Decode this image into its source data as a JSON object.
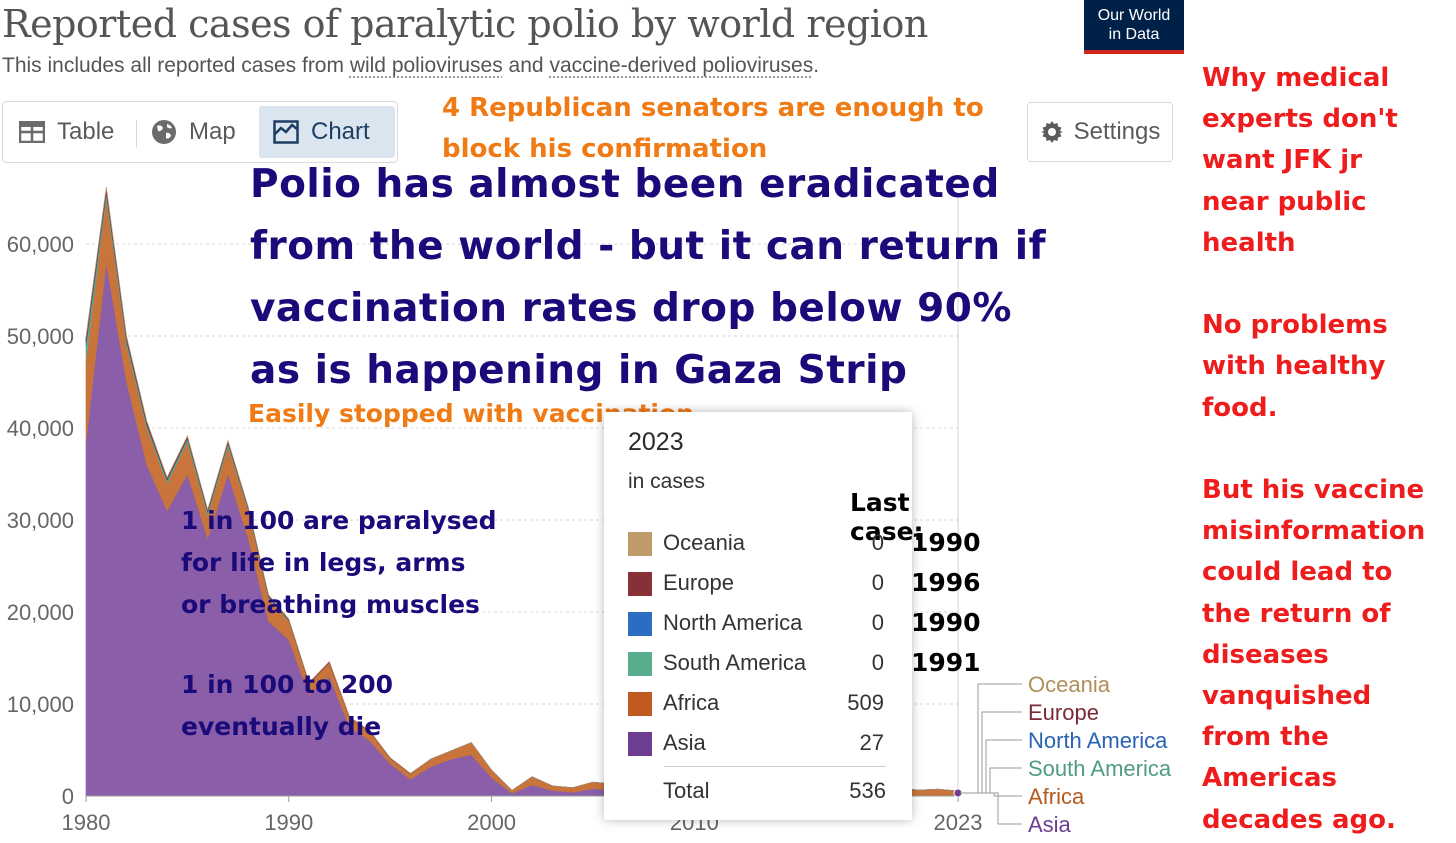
{
  "header": {
    "title": "Reported cases of paralytic polio by world region",
    "subtitle_pre": "This includes all reported cases from ",
    "subtitle_link1": "wild polioviruses",
    "subtitle_mid": " and ",
    "subtitle_link2": "vaccine-derived polioviruses",
    "subtitle_post": ".",
    "logo_line1": "Our World",
    "logo_line2": "in Data"
  },
  "tabs": [
    {
      "label": "Table",
      "icon": "table-icon"
    },
    {
      "label": "Map",
      "icon": "globe-icon"
    },
    {
      "label": "Chart",
      "icon": "chart-icon",
      "active": true
    }
  ],
  "settings": {
    "label": "Settings",
    "icon": "gear-icon"
  },
  "annotations": {
    "senators": "4 Republican senators are enough to\nblock his confirmation",
    "main": "Polio has almost been eradicated\nfrom the world - but it can return if\nvaccination rates drop below 90%\nas is happening in Gaza Strip",
    "easily": "Easily stopped with vaccination",
    "paralysed": "1 in 100 are paralysed\nfor life in legs, arms\nor breathing muscles",
    "die": "1 in 100 to 200\neventually die",
    "side": "Why medical\nexperts don't\nwant JFK jr\nnear public\nhealth\n\nNo problems\nwith healthy\nfood.\n\nBut his vaccine\nmisinformation\ncould lead to\nthe return of\ndiseases\nvanquished\nfrom the\nAmericas\ndecades ago."
  },
  "tooltip": {
    "year": "2023",
    "unit": "in cases",
    "last_case_header": "Last case:",
    "rows": [
      {
        "name": "Oceania",
        "value": "0",
        "last_case": "1990",
        "color": "#C19A6B"
      },
      {
        "name": "Europe",
        "value": "0",
        "last_case": "1996",
        "color": "#883039"
      },
      {
        "name": "North America",
        "value": "0",
        "last_case": "1990",
        "color": "#2C6DC1"
      },
      {
        "name": "South America",
        "value": "0",
        "last_case": "1991",
        "color": "#58AC8C"
      },
      {
        "name": "Africa",
        "value": "509",
        "last_case": "",
        "color": "#C15A20"
      },
      {
        "name": "Asia",
        "value": "27",
        "last_case": "",
        "color": "#6D3E91"
      }
    ],
    "total_label": "Total",
    "total_value": "536"
  },
  "chart_data": {
    "type": "area",
    "stacked": true,
    "title": "Reported cases of paralytic polio by world region",
    "ylim": [
      0,
      65000
    ],
    "y_ticks": [
      0,
      10000,
      20000,
      30000,
      40000,
      50000,
      60000
    ],
    "y_tick_labels": [
      "0",
      "10,000",
      "20,000",
      "30,000",
      "40,000",
      "50,000",
      "60,000"
    ],
    "x_ticks": [
      1980,
      1990,
      2000,
      2010,
      2023
    ],
    "x_tick_labels": [
      "1980",
      "1990",
      "2000",
      "2010",
      "2023"
    ],
    "grid": "horizontal-dotted",
    "legend": "right-end-labels",
    "x": [
      1980,
      1981,
      1982,
      1983,
      1984,
      1985,
      1986,
      1987,
      1988,
      1989,
      1990,
      1991,
      1992,
      1993,
      1994,
      1995,
      1996,
      1997,
      1998,
      1999,
      2000,
      2001,
      2002,
      2003,
      2004,
      2005,
      2006,
      2007,
      2008,
      2009,
      2010,
      2011,
      2012,
      2013,
      2014,
      2015,
      2016,
      2017,
      2018,
      2019,
      2020,
      2021,
      2022,
      2023
    ],
    "series": [
      {
        "name": "Asia",
        "color": "#8a5ea8",
        "values": [
          38500,
          58000,
          45000,
          36000,
          31000,
          35000,
          28000,
          35000,
          28000,
          19000,
          17000,
          11000,
          13000,
          7500,
          6000,
          3500,
          1800,
          3200,
          4000,
          4500,
          2000,
          300,
          1200,
          600,
          400,
          800,
          600,
          600,
          700,
          500,
          400,
          300,
          200,
          150,
          200,
          100,
          80,
          60,
          50,
          150,
          200,
          30,
          40,
          27
        ]
      },
      {
        "name": "Africa",
        "color": "#c8743a",
        "values": [
          9000,
          7000,
          4000,
          4000,
          3000,
          3500,
          2500,
          3000,
          3000,
          2500,
          2000,
          1200,
          1500,
          1000,
          1000,
          600,
          600,
          800,
          900,
          1300,
          800,
          300,
          900,
          500,
          500,
          700,
          700,
          600,
          500,
          600,
          500,
          500,
          400,
          400,
          400,
          300,
          200,
          200,
          300,
          500,
          800,
          600,
          700,
          509
        ]
      },
      {
        "name": "South America",
        "color": "#58ac8c",
        "values": [
          1500,
          500,
          400,
          300,
          300,
          300,
          300,
          300,
          200,
          150,
          100,
          20,
          0,
          0,
          0,
          0,
          0,
          0,
          0,
          0,
          0,
          0,
          0,
          0,
          0,
          0,
          0,
          0,
          0,
          0,
          0,
          0,
          0,
          0,
          0,
          0,
          0,
          0,
          0,
          0,
          0,
          0,
          0,
          0
        ]
      },
      {
        "name": "North America",
        "color": "#2c6dc1",
        "values": [
          300,
          200,
          200,
          100,
          100,
          100,
          100,
          100,
          50,
          50,
          20,
          0,
          0,
          0,
          0,
          0,
          0,
          0,
          0,
          0,
          0,
          0,
          0,
          0,
          0,
          0,
          0,
          0,
          0,
          0,
          0,
          0,
          0,
          0,
          0,
          0,
          0,
          0,
          0,
          0,
          0,
          0,
          0,
          0
        ]
      },
      {
        "name": "Europe",
        "color": "#883039",
        "values": [
          500,
          400,
          300,
          300,
          200,
          200,
          200,
          200,
          150,
          150,
          100,
          100,
          100,
          80,
          50,
          50,
          50,
          0,
          0,
          0,
          0,
          0,
          0,
          0,
          0,
          0,
          0,
          0,
          0,
          0,
          0,
          0,
          0,
          0,
          0,
          0,
          0,
          0,
          0,
          0,
          0,
          0,
          0,
          0
        ]
      },
      {
        "name": "Oceania",
        "color": "#c19a6b",
        "values": [
          100,
          100,
          50,
          50,
          50,
          50,
          50,
          50,
          20,
          20,
          10,
          0,
          0,
          0,
          0,
          0,
          0,
          0,
          0,
          0,
          0,
          0,
          0,
          0,
          0,
          0,
          0,
          0,
          0,
          0,
          0,
          0,
          0,
          0,
          0,
          0,
          0,
          0,
          0,
          0,
          0,
          0,
          0,
          0
        ]
      }
    ],
    "end_labels": [
      {
        "name": "Oceania",
        "color": "#b08f5a"
      },
      {
        "name": "Europe",
        "color": "#7a2a35"
      },
      {
        "name": "North America",
        "color": "#2a62b4"
      },
      {
        "name": "South America",
        "color": "#4f9c80"
      },
      {
        "name": "Africa",
        "color": "#b5591d"
      },
      {
        "name": "Asia",
        "color": "#6d3e91"
      }
    ]
  }
}
